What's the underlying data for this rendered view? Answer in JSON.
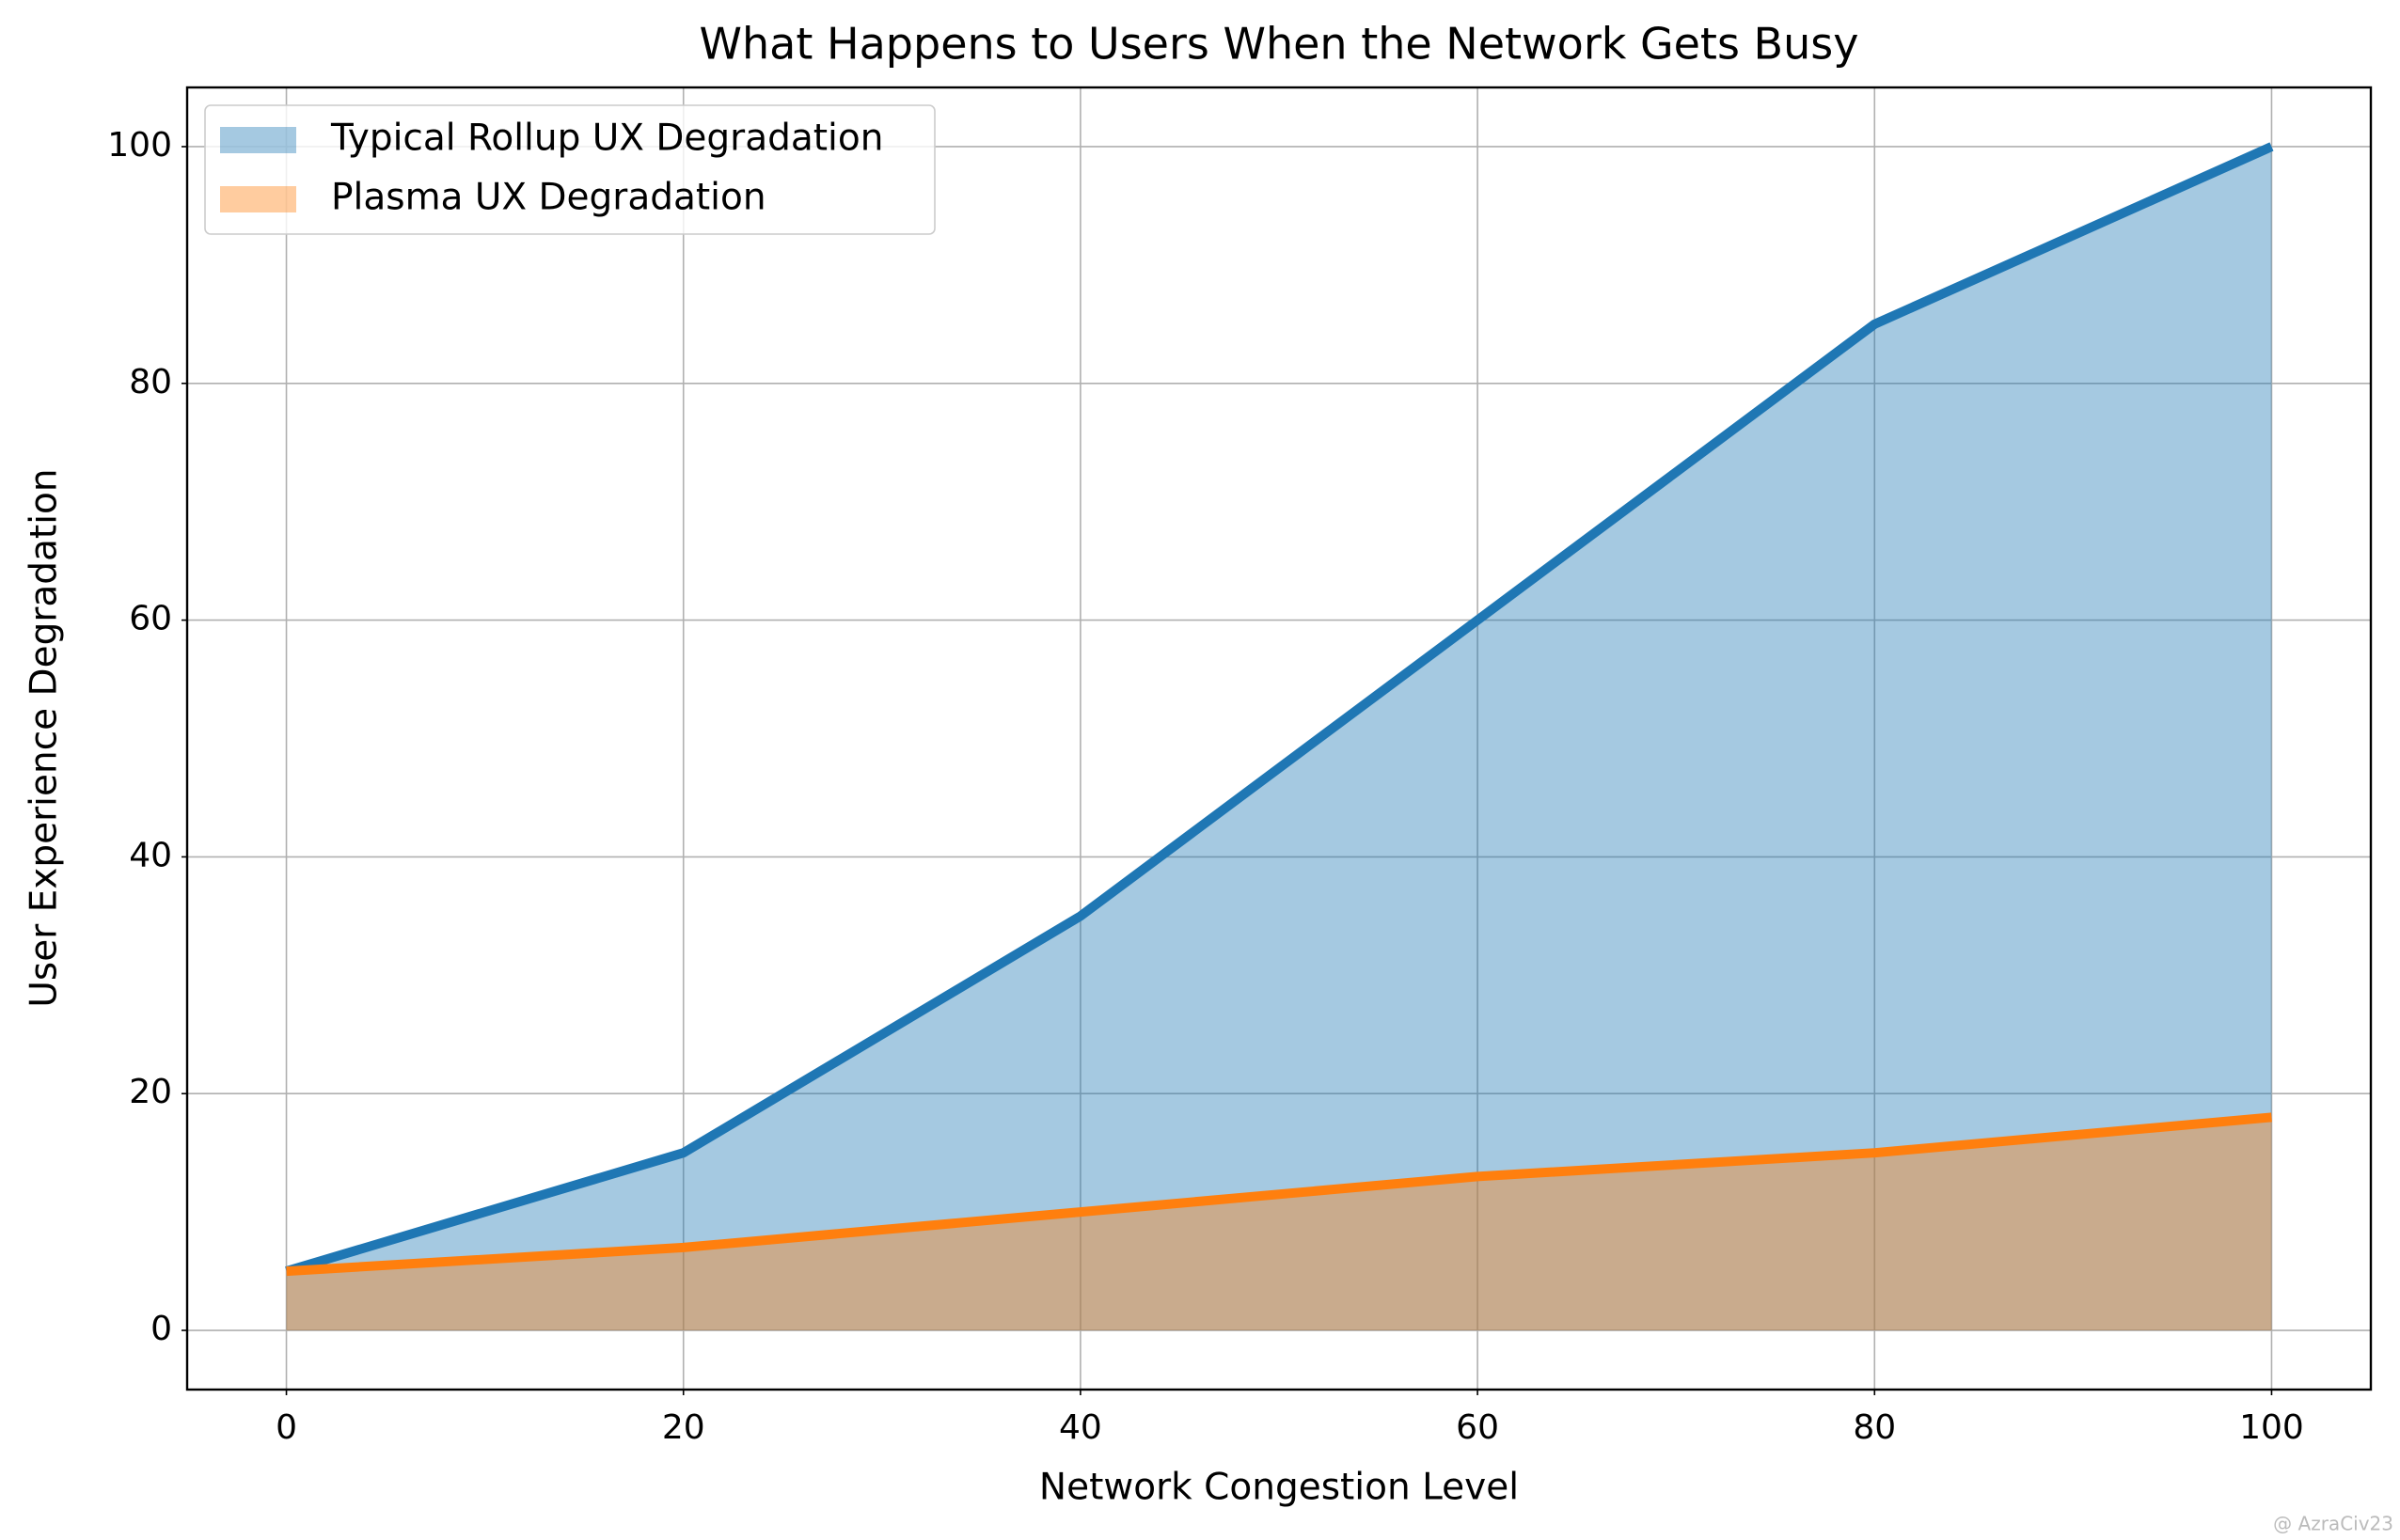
{
  "chart_data": {
    "type": "area",
    "title": "What Happens to Users When the Network Gets Busy",
    "x_label": "Network Congestion Level",
    "y_label": "User Experience Degradation",
    "x": [
      0,
      20,
      40,
      60,
      80,
      100
    ],
    "series": [
      {
        "name": "Typical Rollup UX Degradation",
        "color": "#1f77b4",
        "values": [
          5,
          15,
          35,
          60,
          85,
          100
        ]
      },
      {
        "name": "Plasma UX Degradation",
        "color": "#ff7f0e",
        "values": [
          5,
          7,
          10,
          13,
          15,
          18
        ]
      }
    ],
    "xlim": [
      -5,
      105
    ],
    "ylim": [
      -5,
      105
    ],
    "xticks": [
      0,
      20,
      40,
      60,
      80,
      100
    ],
    "yticks": [
      0,
      20,
      40,
      60,
      80,
      100
    ],
    "grid": true,
    "legend": "upper left",
    "watermark": "@ AzraCiv23"
  }
}
